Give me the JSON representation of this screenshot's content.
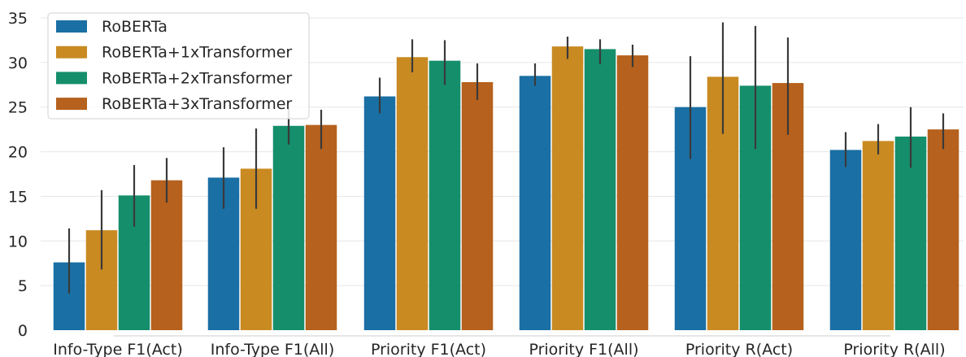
{
  "chart_data": {
    "type": "bar",
    "categories": [
      "Info-Type F1(Act)",
      "Info-Type F1(All)",
      "Priority F1(Act)",
      "Priority F1(All)",
      "Priority R(Act)",
      "Priority R(All)"
    ],
    "series": [
      {
        "name": "RoBERTa",
        "color": "#1a6fa4",
        "values": [
          7.6,
          17.1,
          26.2,
          28.5,
          25.0,
          20.2
        ],
        "err_low": [
          4.1,
          13.6,
          24.3,
          27.4,
          19.2,
          18.3
        ],
        "err_high": [
          11.4,
          20.5,
          28.3,
          29.9,
          30.7,
          22.2
        ]
      },
      {
        "name": "RoBERTa+1xTransformer",
        "color": "#c98a22",
        "values": [
          11.2,
          18.1,
          30.6,
          31.8,
          28.4,
          21.2
        ],
        "err_low": [
          6.8,
          13.6,
          28.9,
          30.4,
          22.0,
          19.7
        ],
        "err_high": [
          15.7,
          22.6,
          32.6,
          32.9,
          34.5,
          23.1
        ]
      },
      {
        "name": "RoBERTa+2xTransformer",
        "color": "#158e6b",
        "values": [
          15.1,
          22.9,
          30.2,
          31.5,
          27.4,
          21.7
        ],
        "err_low": [
          11.6,
          20.8,
          27.5,
          29.8,
          20.3,
          18.2
        ],
        "err_high": [
          18.5,
          24.9,
          32.5,
          32.6,
          34.1,
          25.0
        ]
      },
      {
        "name": "RoBERTa+3xTransformer",
        "color": "#b6611d",
        "values": [
          16.8,
          23.0,
          27.8,
          30.8,
          27.7,
          22.5
        ],
        "err_low": [
          14.3,
          20.3,
          25.8,
          29.5,
          21.9,
          20.3
        ],
        "err_high": [
          19.3,
          24.7,
          29.9,
          32.0,
          32.8,
          24.3
        ]
      }
    ],
    "yticks": [
      "0",
      "5",
      "10",
      "15",
      "20",
      "25",
      "30",
      "35"
    ],
    "ylim": [
      0,
      35
    ],
    "xlabel": "",
    "ylabel": "",
    "title": "",
    "grid": "horizontal",
    "legend_position": "top-left"
  }
}
